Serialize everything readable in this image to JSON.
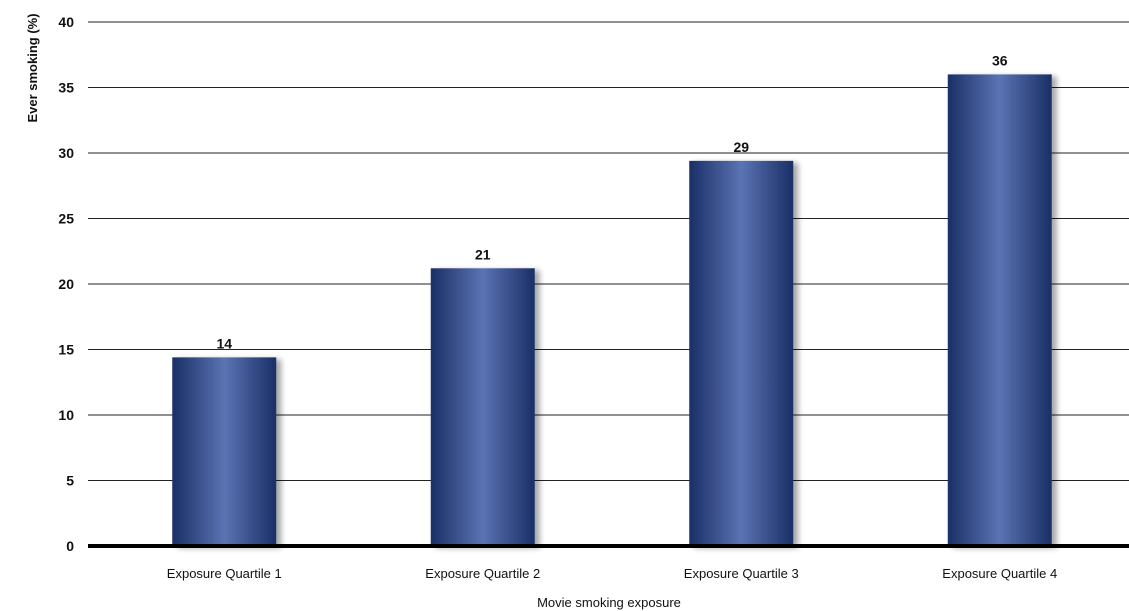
{
  "chart_data": {
    "type": "bar",
    "categories": [
      "Exposure Quartile 1",
      "Exposure Quartile 2",
      "Exposure Quartile 3",
      "Exposure Quartile 4"
    ],
    "values": [
      14.4,
      21.2,
      29.4,
      36
    ],
    "data_labels": [
      "14",
      "21",
      "29",
      "36"
    ],
    "xlabel": "Movie smoking exposure",
    "ylabel": "Ever smoking (%)",
    "ylim": [
      0,
      40
    ],
    "yticks": [
      0,
      5,
      10,
      15,
      20,
      25,
      30,
      35,
      40
    ],
    "grid": true,
    "bar_colors": {
      "edge": "#1a2f66",
      "center": "#5b73b3"
    }
  }
}
